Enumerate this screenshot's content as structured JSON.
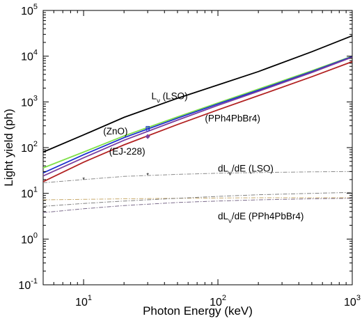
{
  "chart_data": {
    "type": "line",
    "xlabel": "Photon Energy (keV)",
    "ylabel": "Light yield (ph)",
    "xscale": "log",
    "yscale": "log",
    "xlim": [
      5,
      1000
    ],
    "ylim": [
      0.1,
      100000
    ],
    "x_ticks": [
      {
        "base": "10",
        "exp": "1",
        "value": 10
      },
      {
        "base": "10",
        "exp": "2",
        "value": 100
      },
      {
        "base": "10",
        "exp": "3",
        "value": 1000
      }
    ],
    "y_ticks": [
      {
        "base": "10",
        "exp": "-1",
        "value": 0.1
      },
      {
        "base": "10",
        "exp": "0",
        "value": 1
      },
      {
        "base": "10",
        "exp": "1",
        "value": 10
      },
      {
        "base": "10",
        "exp": "2",
        "value": 100
      },
      {
        "base": "10",
        "exp": "3",
        "value": 1000
      },
      {
        "base": "10",
        "exp": "4",
        "value": 10000
      },
      {
        "base": "10",
        "exp": "5",
        "value": 100000
      }
    ],
    "grid": false,
    "series": [
      {
        "name": "Lν (LSO)",
        "color": "#000000",
        "style": "solid",
        "x": [
          5,
          10,
          20,
          50,
          100,
          200,
          500,
          1000
        ],
        "y": [
          80,
          190,
          460,
          1200,
          2350,
          4600,
          12500,
          28000
        ]
      },
      {
        "name": "(ZnO)",
        "color": "#7fe04a",
        "style": "solid",
        "x": [
          5,
          10,
          20,
          50,
          100,
          200,
          500,
          1000
        ],
        "y": [
          36,
          80,
          180,
          470,
          950,
          1900,
          4800,
          10000
        ]
      },
      {
        "name": "",
        "color": "#1c2fd0",
        "style": "solid",
        "x": [
          5,
          10,
          20,
          50,
          100,
          200,
          500,
          1000
        ],
        "y": [
          28,
          70,
          165,
          440,
          900,
          1800,
          4600,
          9800
        ]
      },
      {
        "name": "",
        "color": "#7b3f9e",
        "style": "solid",
        "x": [
          5,
          10,
          20,
          50,
          100,
          200,
          500,
          1000
        ],
        "y": [
          24,
          60,
          145,
          400,
          840,
          1700,
          4400,
          9500
        ]
      },
      {
        "name": "(PPh4PbBr4)",
        "color": "#b22222",
        "style": "solid",
        "x": [
          5,
          10,
          20,
          50,
          100,
          200,
          500,
          1000
        ],
        "y": [
          18,
          48,
          115,
          320,
          670,
          1370,
          3550,
          7600
        ]
      },
      {
        "name": "dLν/dE (LSO)",
        "color": "#8a8a8a",
        "style": "dashdot",
        "x": [
          5,
          10,
          20,
          50,
          100,
          200,
          500,
          1000
        ],
        "y": [
          17,
          20,
          23.5,
          26,
          27.5,
          28.5,
          29.5,
          30
        ]
      },
      {
        "name": "",
        "color": "#c7a96b",
        "style": "dashdot",
        "x": [
          5,
          10,
          20,
          50,
          100,
          200,
          500,
          1000
        ],
        "y": [
          7.2,
          7.4,
          7.6,
          7.8,
          7.9,
          8,
          8,
          8
        ]
      },
      {
        "name": "",
        "color": "#7f7f7f",
        "style": "dashdot",
        "x": [
          5,
          10,
          20,
          50,
          100,
          200,
          500,
          1000
        ],
        "y": [
          5.2,
          6,
          6.8,
          7.8,
          8.6,
          9.3,
          10,
          10.5
        ]
      },
      {
        "name": "dLν/dE (PPh4PbBr4)",
        "color": "#7a6a8a",
        "style": "dashdot",
        "x": [
          5,
          10,
          20,
          50,
          100,
          200,
          500,
          1000
        ],
        "y": [
          3.8,
          4.6,
          5.4,
          6.3,
          6.8,
          7.2,
          7.6,
          7.8
        ]
      }
    ],
    "markers": [
      {
        "x": 30,
        "y": 270,
        "symbol": "square",
        "color": "#1c2fd0"
      },
      {
        "x": 30,
        "y": 250,
        "symbol": "circle",
        "color": "#1c2fd0"
      },
      {
        "x": 30,
        "y": 175,
        "symbol": "diamond",
        "color": "#7b3f9e"
      },
      {
        "x": 10,
        "y": 20,
        "symbol": "star",
        "color": "#d68a8a"
      },
      {
        "x": 30,
        "y": 25,
        "symbol": "star",
        "color": "#d68a8a"
      }
    ],
    "annotations": [
      {
        "main": "L",
        "sub": "ν",
        "rest": " (LSO)",
        "x": 32,
        "y": 1150
      },
      {
        "main": "(ZnO)",
        "sub": "",
        "rest": "",
        "x": 14,
        "y": 195
      },
      {
        "main": "(EJ-228)",
        "sub": "",
        "rest": "",
        "x": 15.5,
        "y": 70
      },
      {
        "main": "(PPh4PbBr4)",
        "sub": "",
        "rest": "",
        "x": 80,
        "y": 370
      },
      {
        "main": "dL",
        "sub": "ν",
        "rest": "/dE  (LSO)",
        "x": 100,
        "y": 30
      },
      {
        "main": "dL",
        "sub": "ν",
        "rest": "/dE (PPh4PbBr4)",
        "x": 100,
        "y": 2.7
      }
    ]
  }
}
